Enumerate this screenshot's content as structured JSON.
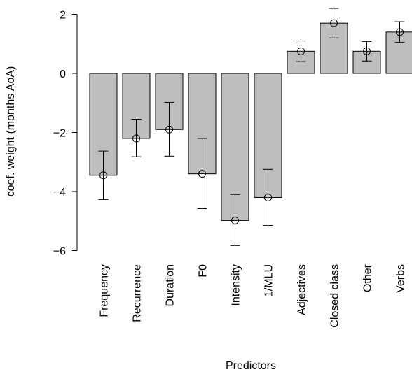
{
  "chart_data": {
    "type": "bar",
    "title": "",
    "xlabel": "Predictors",
    "ylabel": "coef. weight (months AoA)",
    "ylim": [
      -6,
      2
    ],
    "yticks": [
      -6,
      -4,
      -2,
      0,
      2
    ],
    "ytick_labels": [
      "−6",
      "−4",
      "−2",
      "0",
      "2"
    ],
    "grid": false,
    "legend": "none",
    "categories": [
      "Frequency",
      "Recurrence",
      "Duration",
      "F0",
      "Intensity",
      "1/MLU",
      "Adjectives",
      "Closed class",
      "Other",
      "Verbs"
    ],
    "values": [
      -3.45,
      -2.2,
      -1.9,
      -3.4,
      -4.98,
      -4.2,
      0.75,
      1.7,
      0.75,
      1.4
    ],
    "error_low": [
      -4.27,
      -2.82,
      -2.8,
      -4.58,
      -5.83,
      -5.15,
      0.4,
      1.2,
      0.42,
      1.05
    ],
    "error_high": [
      -2.63,
      -1.55,
      -0.98,
      -2.2,
      -4.1,
      -3.25,
      1.1,
      2.2,
      1.08,
      1.75
    ],
    "colors": {
      "bar_fill": "#bebebe",
      "bar_stroke": "#000000"
    }
  }
}
